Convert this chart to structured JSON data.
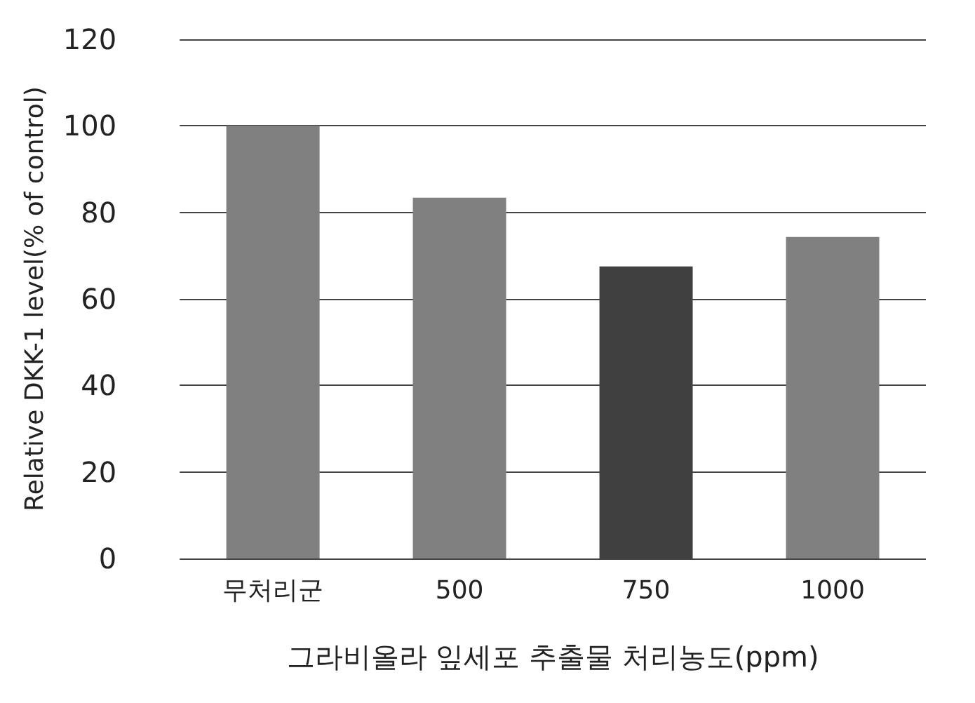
{
  "chart_data": {
    "type": "bar",
    "xlabel": "그라비올라 잎세포 추출물 처리농도(ppm)",
    "ylabel": "Relative DKK-1 level(% of control)",
    "categories": [
      "무처리군",
      "500",
      "750",
      "1000"
    ],
    "values": [
      100,
      83.4,
      67.5,
      74.3
    ],
    "colors": [
      "#808080",
      "#808080",
      "#404040",
      "#808080"
    ],
    "ylim": [
      0,
      120
    ],
    "yticks": [
      0,
      20,
      40,
      60,
      80,
      100,
      120
    ],
    "grid": "y"
  }
}
